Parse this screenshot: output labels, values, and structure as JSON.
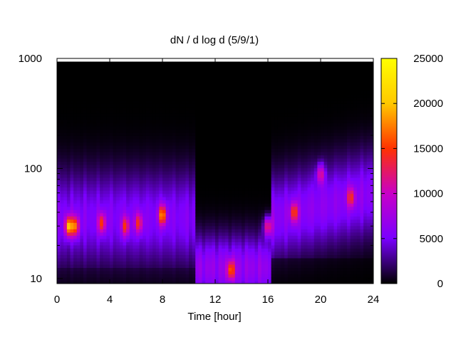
{
  "chart_data": {
    "type": "heatmap",
    "title": "dN / d log d (5/9/1)",
    "xlabel": "Time [hour]",
    "ylabel": "",
    "x_range": [
      0,
      24
    ],
    "x_ticks": [
      0,
      4,
      8,
      12,
      16,
      20,
      24
    ],
    "y_range": [
      9,
      1000
    ],
    "y_scale": "log",
    "y_ticks": [
      10,
      100,
      1000
    ],
    "colorbar": {
      "range": [
        0,
        25000
      ],
      "ticks": [
        0,
        5000,
        10000,
        15000,
        20000,
        25000
      ],
      "palette": [
        "#000000",
        "#7a00ff",
        "#c800c8",
        "#ff3200",
        "#ffc800",
        "#ffff00"
      ]
    },
    "grid": false,
    "legend": "none",
    "features": [
      {
        "time": 0.9,
        "diameter": 30,
        "value": 18000
      },
      {
        "time": 1.4,
        "diameter": 30,
        "value": 14000
      },
      {
        "time": 3.4,
        "diameter": 32,
        "value": 12000
      },
      {
        "time": 5.2,
        "diameter": 30,
        "value": 11500
      },
      {
        "time": 6.2,
        "diameter": 32,
        "value": 11000
      },
      {
        "time": 8.0,
        "diameter": 38,
        "value": 16000
      },
      {
        "time": 13.2,
        "diameter": 12,
        "value": 13000
      },
      {
        "time": 16.0,
        "diameter": 30,
        "value": 14500
      },
      {
        "time": 18.0,
        "diameter": 40,
        "value": 12000
      },
      {
        "time": 20.0,
        "diameter": 90,
        "value": 10500
      },
      {
        "time": 22.3,
        "diameter": 55,
        "value": 10500
      }
    ]
  }
}
